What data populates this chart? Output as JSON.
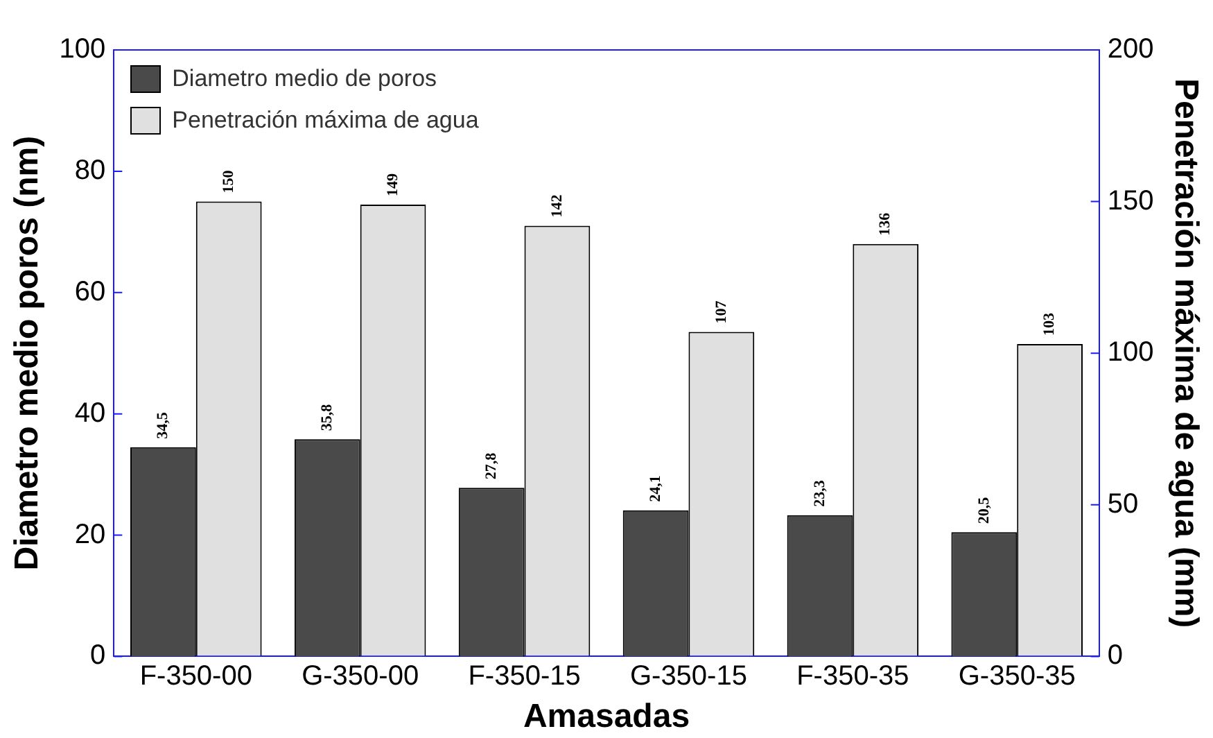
{
  "chart_data": {
    "type": "bar",
    "xlabel": "Amasadas",
    "ylabel": "Diametro medio poros (nm)",
    "y2label": "Penetración máxima de agua (mm)",
    "categories": [
      "F-350-00",
      "G-350-00",
      "F-350-15",
      "G-350-15",
      "F-350-35",
      "G-350-35"
    ],
    "series": [
      {
        "name": "Diametro medio de poros",
        "color": "#4a4a4a",
        "values": [
          34.5,
          35.8,
          27.8,
          24.1,
          23.3,
          20.5
        ],
        "value_labels": [
          "34,5",
          "35,8",
          "27,8",
          "24,1",
          "23,3",
          "20,5"
        ]
      },
      {
        "name": "Penetración máxima de agua",
        "color": "#e0e0e0",
        "axis": "y2",
        "values": [
          150,
          149,
          142,
          107,
          136,
          103
        ],
        "value_labels": [
          "150",
          "149",
          "142",
          "107",
          "136",
          "103"
        ]
      }
    ],
    "ylim": [
      0,
      100
    ],
    "yticks": [
      0,
      20,
      40,
      60,
      80,
      100
    ],
    "y2lim": [
      0,
      200
    ],
    "y2ticks": [
      0,
      50,
      100,
      150,
      200
    ],
    "grid": false,
    "legend": "top left"
  }
}
